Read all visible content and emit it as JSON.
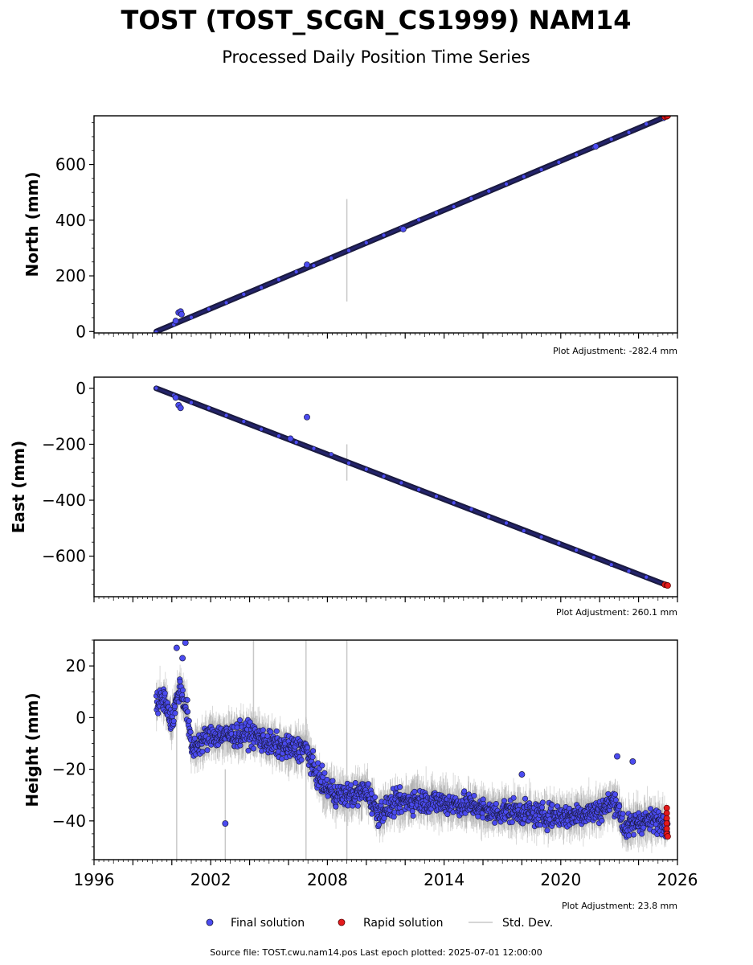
{
  "title": "TOST (TOST_SCGN_CS1999) NAM14",
  "subtitle": "Processed Daily Position Time Series",
  "legend": {
    "final": "Final solution",
    "rapid": "Rapid solution",
    "std": "Std. Dev."
  },
  "footer": "Source file: TOST.cwu.nam14.pos  Last epoch plotted: 2025-07-01 12:00:00",
  "colors": {
    "final": "#4b4bf0",
    "rapid": "#e41a1c",
    "std": "#c8c8c8",
    "edge": "#1a1a40"
  },
  "chart_data": [
    {
      "type": "scatter",
      "ylabel": "North (mm)",
      "adjustment": "Plot Adjustment: -282.4 mm",
      "xlim": [
        1996,
        2026
      ],
      "ylim": [
        -5,
        775
      ],
      "yticks": [
        0,
        200,
        400,
        600
      ],
      "trend": {
        "start": [
          1999.2,
          0
        ],
        "end": [
          2025.5,
          775
        ]
      },
      "series": [
        {
          "name": "Final solution",
          "points": [
            [
              2000.35,
              68
            ],
            [
              2000.45,
              72
            ],
            [
              2000.5,
              62
            ],
            [
              2000.2,
              38
            ],
            [
              2006.95,
              240
            ],
            [
              2011.9,
              368
            ],
            [
              2021.8,
              665
            ]
          ]
        },
        {
          "name": "Rapid solution",
          "points": [
            [
              2025.35,
              771
            ],
            [
              2025.45,
              773
            ],
            [
              2025.5,
              775
            ]
          ]
        }
      ],
      "std_dev": [
        {
          "x": 2009.0,
          "low": 108,
          "high": 476
        }
      ]
    },
    {
      "type": "scatter",
      "ylabel": "East (mm)",
      "adjustment": "Plot Adjustment: 260.1 mm",
      "xlim": [
        1996,
        2026
      ],
      "ylim": [
        -745,
        40
      ],
      "yticks": [
        0,
        -200,
        -400,
        -600
      ],
      "trend": {
        "start": [
          1999.2,
          0
        ],
        "end": [
          2025.5,
          -705
        ]
      },
      "series": [
        {
          "name": "Final solution",
          "points": [
            [
              2000.35,
              -60
            ],
            [
              2000.45,
              -70
            ],
            [
              2000.2,
              -33
            ],
            [
              2006.95,
              -103
            ],
            [
              2006.1,
              -180
            ]
          ]
        },
        {
          "name": "Rapid solution",
          "points": [
            [
              2025.35,
              -702
            ],
            [
              2025.45,
              -704
            ],
            [
              2025.5,
              -705
            ]
          ]
        }
      ],
      "std_dev": [
        {
          "x": 2009.0,
          "low": -330,
          "high": -200
        }
      ]
    },
    {
      "type": "scatter",
      "ylabel": "Height (mm)",
      "adjustment": "Plot Adjustment: 23.8 mm",
      "xlim": [
        1996,
        2026
      ],
      "xticks": [
        1996,
        2002,
        2008,
        2014,
        2020,
        2026
      ],
      "ylim": [
        -55,
        30
      ],
      "yticks": [
        20,
        0,
        -20,
        -40
      ],
      "trend_profile": [
        [
          1999.2,
          5
        ],
        [
          1999.6,
          8
        ],
        [
          2000.0,
          -2
        ],
        [
          2000.4,
          12
        ],
        [
          2000.8,
          2
        ],
        [
          2001.0,
          -12
        ],
        [
          2002.0,
          -7
        ],
        [
          2003.0,
          -7
        ],
        [
          2004.0,
          -6
        ],
        [
          2005.0,
          -10
        ],
        [
          2006.0,
          -12
        ],
        [
          2006.9,
          -12
        ],
        [
          2007.3,
          -20
        ],
        [
          2007.8,
          -26
        ],
        [
          2008.5,
          -30
        ],
        [
          2009.5,
          -30
        ],
        [
          2010.0,
          -28
        ],
        [
          2010.6,
          -37
        ],
        [
          2011.5,
          -33
        ],
        [
          2012.5,
          -32
        ],
        [
          2014.0,
          -33
        ],
        [
          2015.5,
          -34
        ],
        [
          2016.5,
          -37
        ],
        [
          2017.5,
          -36
        ],
        [
          2019.0,
          -38
        ],
        [
          2020.5,
          -38
        ],
        [
          2022.0,
          -36
        ],
        [
          2022.8,
          -32
        ],
        [
          2023.3,
          -43
        ],
        [
          2024.0,
          -40
        ],
        [
          2025.0,
          -40
        ],
        [
          2025.5,
          -41
        ]
      ],
      "series": [
        {
          "name": "Final solution",
          "points": [
            [
              2002.75,
              -41
            ],
            [
              2000.25,
              27
            ],
            [
              2000.7,
              29
            ],
            [
              2000.55,
              23
            ],
            [
              2022.9,
              -15
            ],
            [
              2023.7,
              -17
            ],
            [
              2018.0,
              -22
            ]
          ]
        },
        {
          "name": "Rapid solution",
          "points": [
            [
              2025.45,
              -35
            ],
            [
              2025.45,
              -37
            ],
            [
              2025.45,
              -39
            ],
            [
              2025.45,
              -41
            ],
            [
              2025.45,
              -43
            ],
            [
              2025.45,
              -45
            ],
            [
              2025.5,
              -46
            ]
          ]
        }
      ],
      "std_dev": [
        {
          "x": 2000.25,
          "low": -55,
          "high": 10
        },
        {
          "x": 2002.75,
          "low": -55,
          "high": -20
        },
        {
          "x": 2004.2,
          "low": -15,
          "high": 30
        },
        {
          "x": 2006.9,
          "low": -55,
          "high": 30
        },
        {
          "x": 2009.0,
          "low": -55,
          "high": 30
        }
      ]
    }
  ]
}
